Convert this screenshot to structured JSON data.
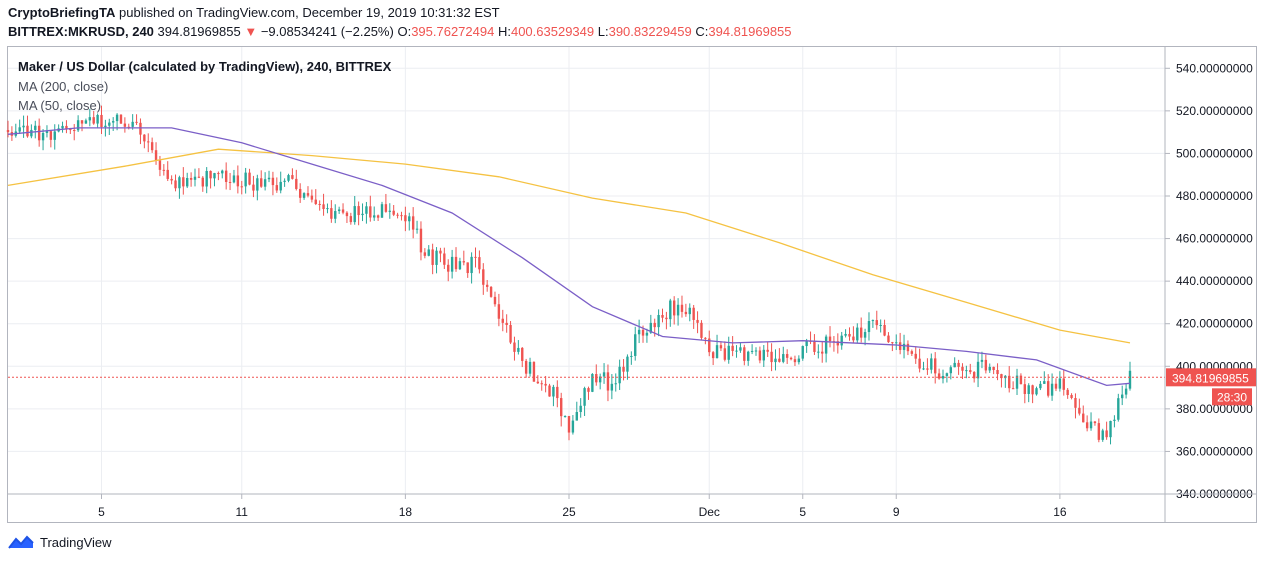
{
  "header": {
    "publisher": "CryptoBriefingTA",
    "published_text": "published on TradingView.com, December 19, 2019 10:31:32 EST",
    "symbol": "BITTREX:MKRUSD, 240",
    "last": "394.81969855",
    "change_arrow": "▼",
    "change": "−9.08534241 (−2.25%)",
    "open_label": "O:",
    "open": "395.76272494",
    "high_label": "H:",
    "high": "400.63529349",
    "low_label": "L:",
    "low": "390.83229459",
    "close_label": "C:",
    "close": "394.81969855"
  },
  "legend": {
    "title": "Maker / US Dollar (calculated by TradingView), 240, BITTREX",
    "ma200": "MA (200, close)",
    "ma50": "MA (50, close)"
  },
  "footer": {
    "brand": "TradingView"
  },
  "colors": {
    "up": "#26a69a",
    "down": "#ef5350",
    "ma200": "#f5c242",
    "ma50": "#7b5fc7",
    "grid": "#eceef2",
    "price_line": "#ef5350"
  },
  "chart_data": {
    "type": "candlestick",
    "ylim": [
      340,
      550
    ],
    "y_ticks": [
      "540.00000000",
      "520.00000000",
      "500.00000000",
      "480.00000000",
      "460.00000000",
      "440.00000000",
      "420.00000000",
      "400.00000000",
      "380.00000000",
      "360.00000000",
      "340.00000000"
    ],
    "y_tick_values": [
      540,
      520,
      500,
      480,
      460,
      440,
      420,
      400,
      380,
      360,
      340
    ],
    "x_ticks": [
      "5",
      "11",
      "18",
      "25",
      "Dec",
      "5",
      "9",
      "16"
    ],
    "x_tick_dates": [
      "2019-11-05",
      "2019-11-11",
      "2019-11-18",
      "2019-11-25",
      "2019-12-01",
      "2019-12-05",
      "2019-12-09",
      "2019-12-16"
    ],
    "date_range": [
      "2019-11-01",
      "2019-12-19"
    ],
    "last_price_label": "394.81969855",
    "countdown_label": "28:30",
    "ma200_points": [
      [
        "2019-11-01",
        485
      ],
      [
        "2019-11-06",
        494
      ],
      [
        "2019-11-10",
        502
      ],
      [
        "2019-11-14",
        499
      ],
      [
        "2019-11-18",
        495
      ],
      [
        "2019-11-22",
        489
      ],
      [
        "2019-11-26",
        479
      ],
      [
        "2019-11-30",
        472
      ],
      [
        "2019-12-04",
        458
      ],
      [
        "2019-12-08",
        443
      ],
      [
        "2019-12-12",
        430
      ],
      [
        "2019-12-16",
        417
      ],
      [
        "2019-12-19",
        411
      ]
    ],
    "ma50_points": [
      [
        "2019-11-01",
        509
      ],
      [
        "2019-11-04",
        512
      ],
      [
        "2019-11-08",
        512
      ],
      [
        "2019-11-11",
        505
      ],
      [
        "2019-11-14",
        495
      ],
      [
        "2019-11-17",
        485
      ],
      [
        "2019-11-20",
        472
      ],
      [
        "2019-11-23",
        451
      ],
      [
        "2019-11-26",
        428
      ],
      [
        "2019-11-29",
        414
      ],
      [
        "2019-12-02",
        411
      ],
      [
        "2019-12-05",
        412
      ],
      [
        "2019-12-09",
        410
      ],
      [
        "2019-12-12",
        407
      ],
      [
        "2019-12-15",
        403
      ],
      [
        "2019-12-18",
        391
      ],
      [
        "2019-12-19",
        392
      ]
    ],
    "price_path": [
      [
        "2019-11-01",
        511
      ],
      [
        "2019-11-03",
        509
      ],
      [
        "2019-11-05",
        516
      ],
      [
        "2019-11-06",
        514
      ],
      [
        "2019-11-07",
        506
      ],
      [
        "2019-11-08",
        487
      ],
      [
        "2019-11-09",
        488
      ],
      [
        "2019-11-10",
        490
      ],
      [
        "2019-11-11",
        487
      ],
      [
        "2019-11-12",
        484
      ],
      [
        "2019-11-13",
        486
      ],
      [
        "2019-11-14",
        478
      ],
      [
        "2019-11-15",
        470
      ],
      [
        "2019-11-16",
        471
      ],
      [
        "2019-11-17",
        473
      ],
      [
        "2019-11-18",
        470
      ],
      [
        "2019-11-19",
        451
      ],
      [
        "2019-11-20",
        448
      ],
      [
        "2019-11-21",
        447
      ],
      [
        "2019-11-22",
        425
      ],
      [
        "2019-11-23",
        400
      ],
      [
        "2019-11-24",
        394
      ],
      [
        "2019-11-25",
        370
      ],
      [
        "2019-11-26",
        395
      ],
      [
        "2019-11-27",
        392
      ],
      [
        "2019-11-28",
        416
      ],
      [
        "2019-11-29",
        426
      ],
      [
        "2019-11-30",
        428
      ],
      [
        "2019-12-01",
        408
      ],
      [
        "2019-12-02",
        406
      ],
      [
        "2019-12-03",
        405
      ],
      [
        "2019-12-04",
        402
      ],
      [
        "2019-12-05",
        408
      ],
      [
        "2019-12-06",
        410
      ],
      [
        "2019-12-07",
        416
      ],
      [
        "2019-12-08",
        418
      ],
      [
        "2019-12-09",
        409
      ],
      [
        "2019-12-10",
        401
      ],
      [
        "2019-12-11",
        398
      ],
      [
        "2019-12-12",
        398
      ],
      [
        "2019-12-13",
        400
      ],
      [
        "2019-12-14",
        392
      ],
      [
        "2019-12-15",
        390
      ],
      [
        "2019-12-16",
        390
      ],
      [
        "2019-12-17",
        372
      ],
      [
        "2019-12-18",
        367
      ],
      [
        "2019-12-19",
        395
      ]
    ]
  }
}
